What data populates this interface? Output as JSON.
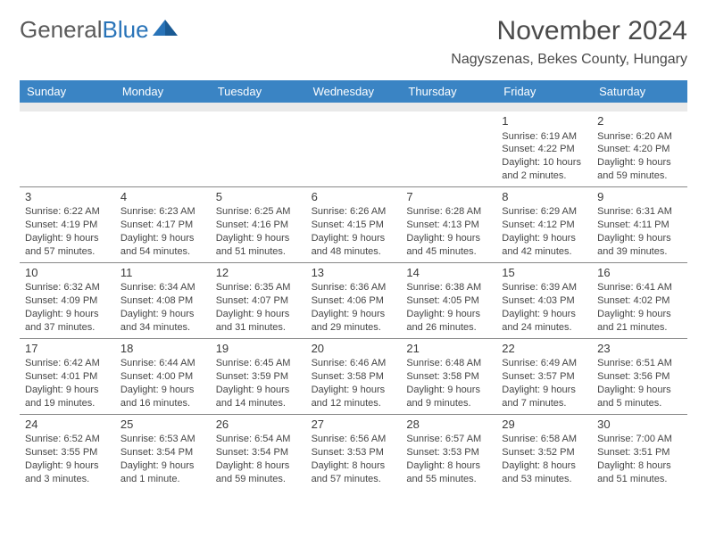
{
  "logo": {
    "text1": "General",
    "text2": "Blue"
  },
  "title": "November 2024",
  "location": "Nagyszenas, Bekes County, Hungary",
  "dayNames": [
    "Sunday",
    "Monday",
    "Tuesday",
    "Wednesday",
    "Thursday",
    "Friday",
    "Saturday"
  ],
  "colors": {
    "headerBg": "#3a84c4",
    "headerText": "#ffffff",
    "spacerBg": "#e9e9e9",
    "border": "#888888",
    "bodyText": "#454545",
    "titleText": "#4a4a4a",
    "logoGray": "#5a5a5a",
    "logoBlue": "#2873b8"
  },
  "weeks": [
    [
      null,
      null,
      null,
      null,
      null,
      {
        "n": "1",
        "sr": "Sunrise: 6:19 AM",
        "ss": "Sunset: 4:22 PM",
        "d1": "Daylight: 10 hours",
        "d2": "and 2 minutes."
      },
      {
        "n": "2",
        "sr": "Sunrise: 6:20 AM",
        "ss": "Sunset: 4:20 PM",
        "d1": "Daylight: 9 hours",
        "d2": "and 59 minutes."
      }
    ],
    [
      {
        "n": "3",
        "sr": "Sunrise: 6:22 AM",
        "ss": "Sunset: 4:19 PM",
        "d1": "Daylight: 9 hours",
        "d2": "and 57 minutes."
      },
      {
        "n": "4",
        "sr": "Sunrise: 6:23 AM",
        "ss": "Sunset: 4:17 PM",
        "d1": "Daylight: 9 hours",
        "d2": "and 54 minutes."
      },
      {
        "n": "5",
        "sr": "Sunrise: 6:25 AM",
        "ss": "Sunset: 4:16 PM",
        "d1": "Daylight: 9 hours",
        "d2": "and 51 minutes."
      },
      {
        "n": "6",
        "sr": "Sunrise: 6:26 AM",
        "ss": "Sunset: 4:15 PM",
        "d1": "Daylight: 9 hours",
        "d2": "and 48 minutes."
      },
      {
        "n": "7",
        "sr": "Sunrise: 6:28 AM",
        "ss": "Sunset: 4:13 PM",
        "d1": "Daylight: 9 hours",
        "d2": "and 45 minutes."
      },
      {
        "n": "8",
        "sr": "Sunrise: 6:29 AM",
        "ss": "Sunset: 4:12 PM",
        "d1": "Daylight: 9 hours",
        "d2": "and 42 minutes."
      },
      {
        "n": "9",
        "sr": "Sunrise: 6:31 AM",
        "ss": "Sunset: 4:11 PM",
        "d1": "Daylight: 9 hours",
        "d2": "and 39 minutes."
      }
    ],
    [
      {
        "n": "10",
        "sr": "Sunrise: 6:32 AM",
        "ss": "Sunset: 4:09 PM",
        "d1": "Daylight: 9 hours",
        "d2": "and 37 minutes."
      },
      {
        "n": "11",
        "sr": "Sunrise: 6:34 AM",
        "ss": "Sunset: 4:08 PM",
        "d1": "Daylight: 9 hours",
        "d2": "and 34 minutes."
      },
      {
        "n": "12",
        "sr": "Sunrise: 6:35 AM",
        "ss": "Sunset: 4:07 PM",
        "d1": "Daylight: 9 hours",
        "d2": "and 31 minutes."
      },
      {
        "n": "13",
        "sr": "Sunrise: 6:36 AM",
        "ss": "Sunset: 4:06 PM",
        "d1": "Daylight: 9 hours",
        "d2": "and 29 minutes."
      },
      {
        "n": "14",
        "sr": "Sunrise: 6:38 AM",
        "ss": "Sunset: 4:05 PM",
        "d1": "Daylight: 9 hours",
        "d2": "and 26 minutes."
      },
      {
        "n": "15",
        "sr": "Sunrise: 6:39 AM",
        "ss": "Sunset: 4:03 PM",
        "d1": "Daylight: 9 hours",
        "d2": "and 24 minutes."
      },
      {
        "n": "16",
        "sr": "Sunrise: 6:41 AM",
        "ss": "Sunset: 4:02 PM",
        "d1": "Daylight: 9 hours",
        "d2": "and 21 minutes."
      }
    ],
    [
      {
        "n": "17",
        "sr": "Sunrise: 6:42 AM",
        "ss": "Sunset: 4:01 PM",
        "d1": "Daylight: 9 hours",
        "d2": "and 19 minutes."
      },
      {
        "n": "18",
        "sr": "Sunrise: 6:44 AM",
        "ss": "Sunset: 4:00 PM",
        "d1": "Daylight: 9 hours",
        "d2": "and 16 minutes."
      },
      {
        "n": "19",
        "sr": "Sunrise: 6:45 AM",
        "ss": "Sunset: 3:59 PM",
        "d1": "Daylight: 9 hours",
        "d2": "and 14 minutes."
      },
      {
        "n": "20",
        "sr": "Sunrise: 6:46 AM",
        "ss": "Sunset: 3:58 PM",
        "d1": "Daylight: 9 hours",
        "d2": "and 12 minutes."
      },
      {
        "n": "21",
        "sr": "Sunrise: 6:48 AM",
        "ss": "Sunset: 3:58 PM",
        "d1": "Daylight: 9 hours",
        "d2": "and 9 minutes."
      },
      {
        "n": "22",
        "sr": "Sunrise: 6:49 AM",
        "ss": "Sunset: 3:57 PM",
        "d1": "Daylight: 9 hours",
        "d2": "and 7 minutes."
      },
      {
        "n": "23",
        "sr": "Sunrise: 6:51 AM",
        "ss": "Sunset: 3:56 PM",
        "d1": "Daylight: 9 hours",
        "d2": "and 5 minutes."
      }
    ],
    [
      {
        "n": "24",
        "sr": "Sunrise: 6:52 AM",
        "ss": "Sunset: 3:55 PM",
        "d1": "Daylight: 9 hours",
        "d2": "and 3 minutes."
      },
      {
        "n": "25",
        "sr": "Sunrise: 6:53 AM",
        "ss": "Sunset: 3:54 PM",
        "d1": "Daylight: 9 hours",
        "d2": "and 1 minute."
      },
      {
        "n": "26",
        "sr": "Sunrise: 6:54 AM",
        "ss": "Sunset: 3:54 PM",
        "d1": "Daylight: 8 hours",
        "d2": "and 59 minutes."
      },
      {
        "n": "27",
        "sr": "Sunrise: 6:56 AM",
        "ss": "Sunset: 3:53 PM",
        "d1": "Daylight: 8 hours",
        "d2": "and 57 minutes."
      },
      {
        "n": "28",
        "sr": "Sunrise: 6:57 AM",
        "ss": "Sunset: 3:53 PM",
        "d1": "Daylight: 8 hours",
        "d2": "and 55 minutes."
      },
      {
        "n": "29",
        "sr": "Sunrise: 6:58 AM",
        "ss": "Sunset: 3:52 PM",
        "d1": "Daylight: 8 hours",
        "d2": "and 53 minutes."
      },
      {
        "n": "30",
        "sr": "Sunrise: 7:00 AM",
        "ss": "Sunset: 3:51 PM",
        "d1": "Daylight: 8 hours",
        "d2": "and 51 minutes."
      }
    ]
  ]
}
